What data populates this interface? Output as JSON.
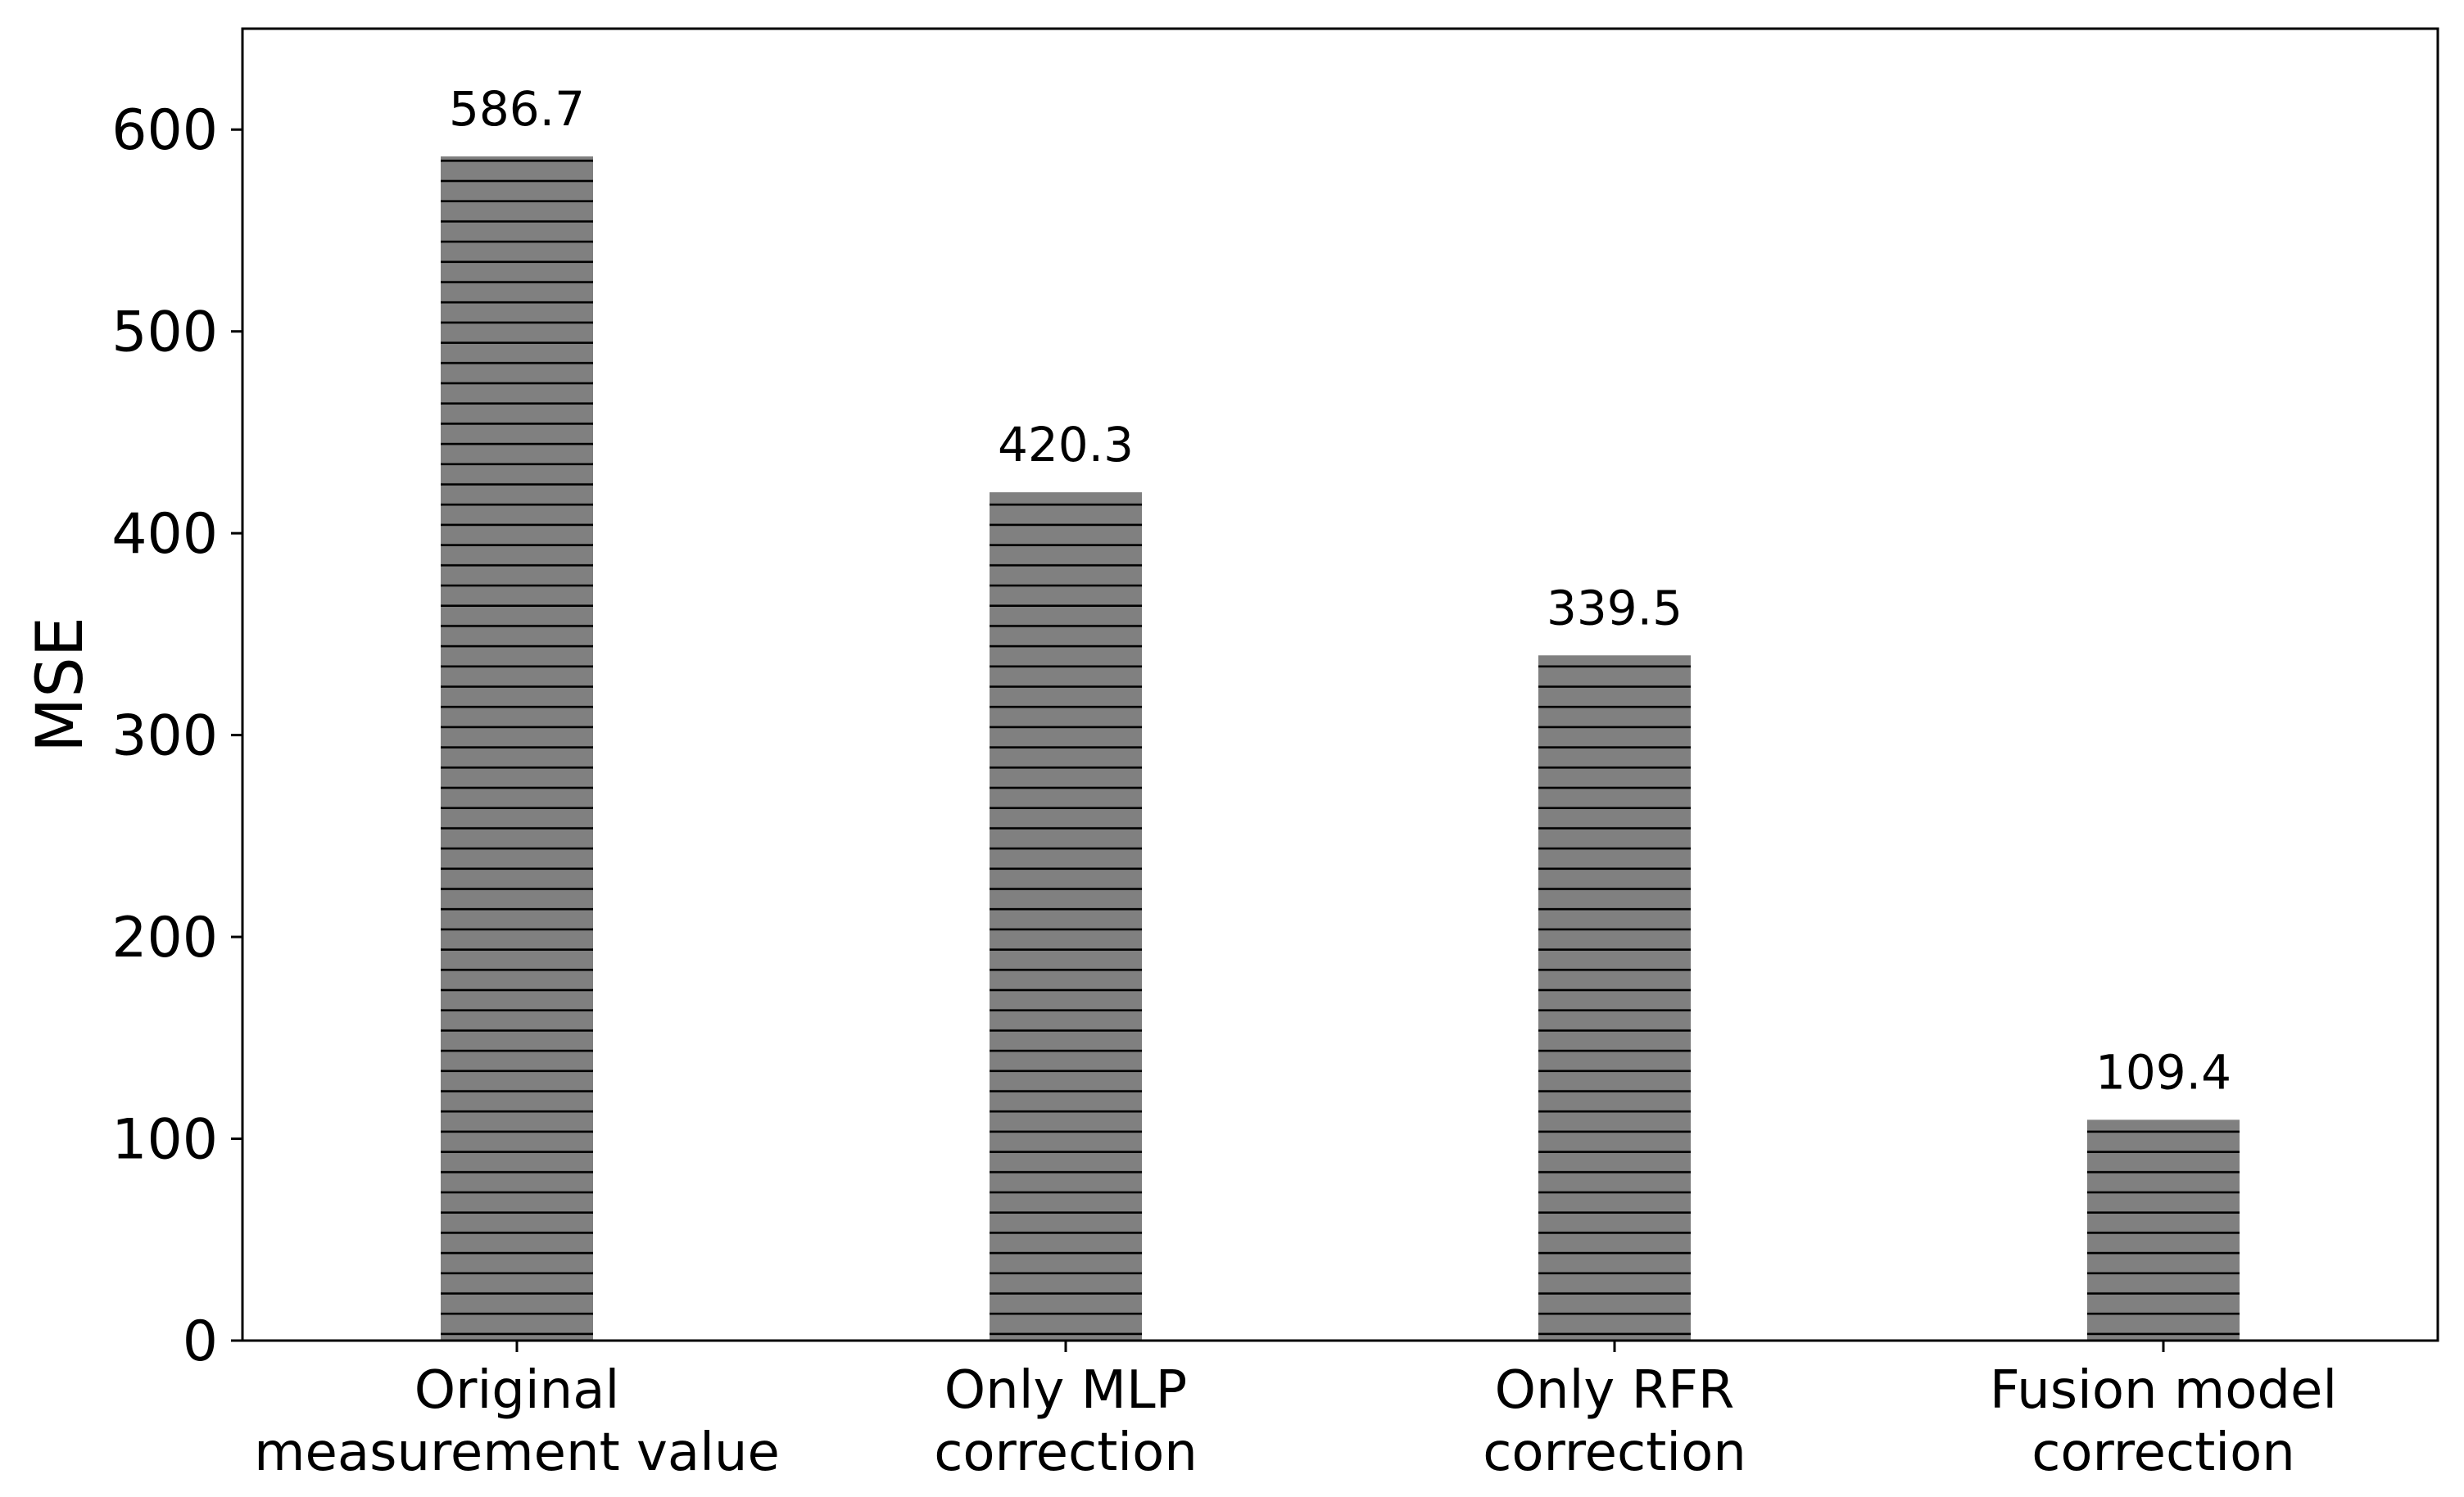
{
  "chart_data": {
    "type": "bar",
    "categories": [
      "Original measurement value",
      "Only MLP correction",
      "Only RFR correction",
      "Fusion model correction"
    ],
    "category_lines": [
      [
        "Original",
        "measurement value"
      ],
      [
        "Only MLP",
        "correction"
      ],
      [
        "Only RFR",
        "correction"
      ],
      [
        "Fusion model",
        "correction"
      ]
    ],
    "values": [
      586.7,
      420.3,
      339.5,
      109.4
    ],
    "data_labels": [
      "586.7",
      "420.3",
      "339.5",
      "109.4"
    ],
    "title": "",
    "xlabel": "",
    "ylabel": "MSE",
    "ylim": [
      0,
      650
    ],
    "yticks": [
      0,
      100,
      200,
      300,
      400,
      500,
      600
    ],
    "grid": false,
    "legend": "none",
    "bar_color": "#808080",
    "hatch": "horizontal lines",
    "hatch_color": "#000000"
  }
}
